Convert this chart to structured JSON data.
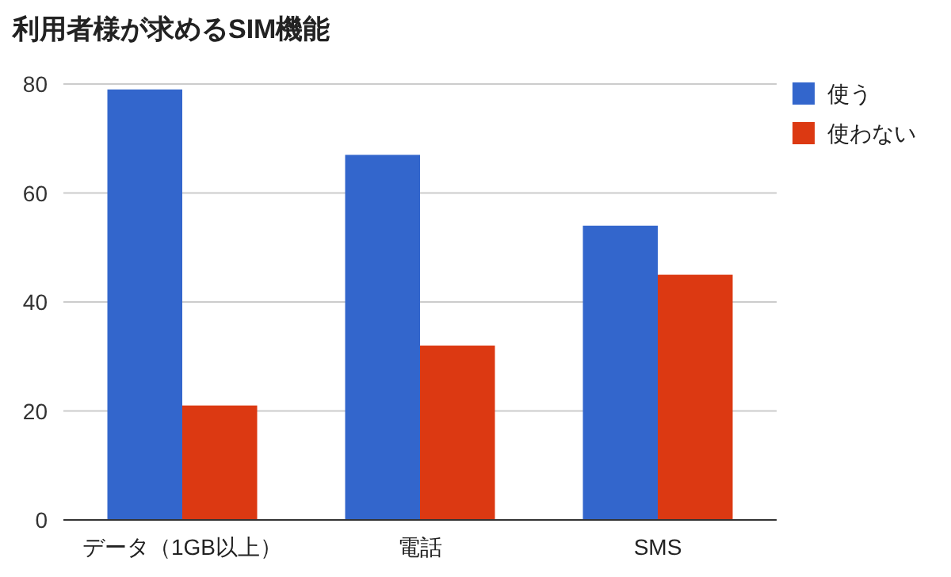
{
  "chart_data": {
    "type": "bar",
    "title": "利用者様が求めるSIM機能",
    "categories": [
      "データ（1GB以上）",
      "電話",
      "SMS"
    ],
    "series": [
      {
        "name": "使う",
        "color": "#3366cc",
        "values": [
          79,
          67,
          54
        ]
      },
      {
        "name": "使わない",
        "color": "#dc3912",
        "values": [
          21,
          32,
          45
        ]
      }
    ],
    "ylim": [
      0,
      80
    ],
    "yticks": [
      0,
      20,
      40,
      60,
      80
    ],
    "grid": "y",
    "legend": "top right"
  }
}
